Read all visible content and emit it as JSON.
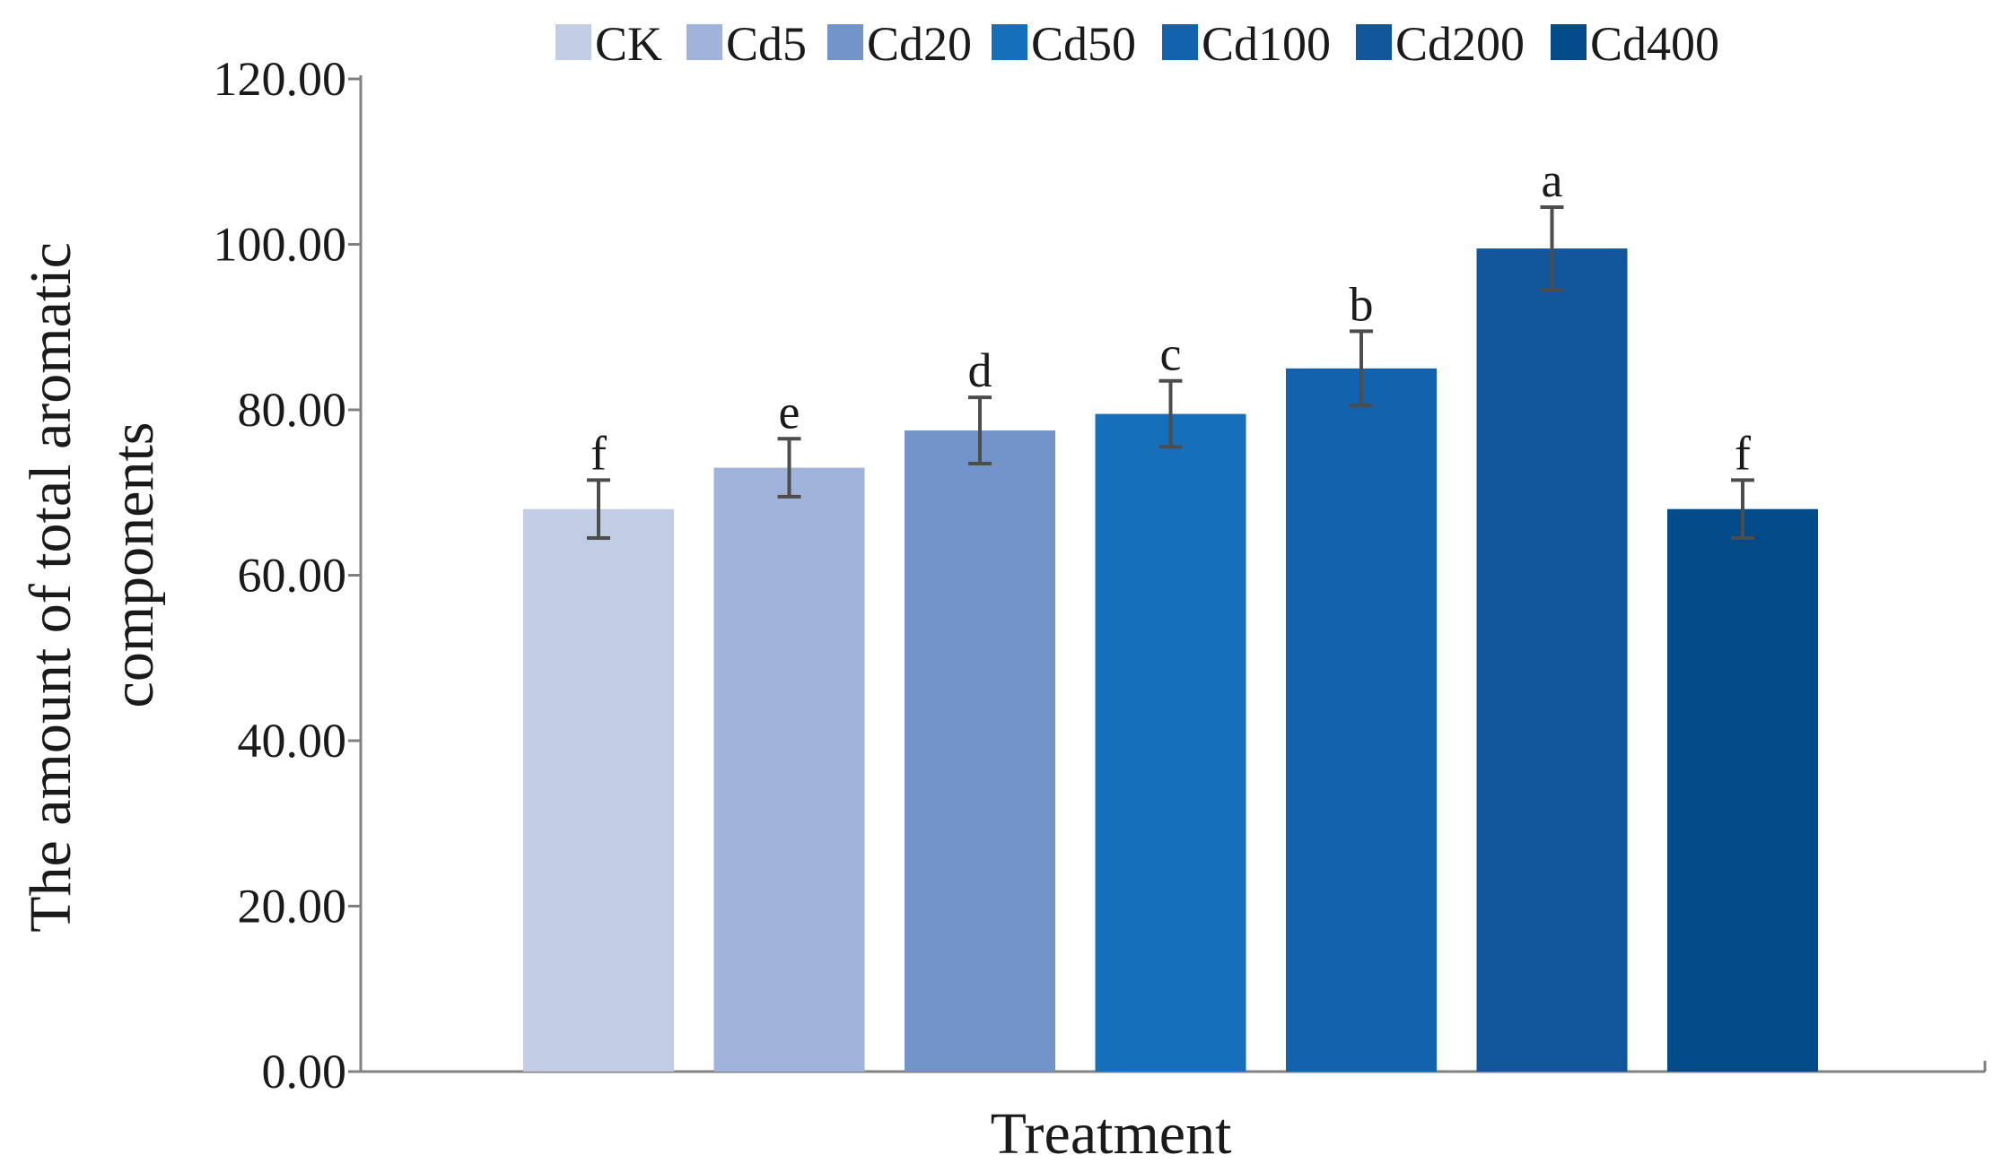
{
  "chart_data": {
    "type": "bar",
    "title": "",
    "xlabel": "Treatment",
    "ylabel_line1": "The amount of total aromatic",
    "ylabel_line2": "components",
    "ylim": [
      0,
      120
    ],
    "yticks": [
      "0.00",
      "20.00",
      "40.00",
      "60.00",
      "80.00",
      "100.00",
      "120.00"
    ],
    "grid": false,
    "legend_position": "top",
    "series": [
      {
        "name": "CK",
        "value": 68.0,
        "error": 3.5,
        "significance": "f",
        "color": "#c1cce5"
      },
      {
        "name": "Cd5",
        "value": 73.0,
        "error": 3.5,
        "significance": "e",
        "color": "#a0b3da"
      },
      {
        "name": "Cd20",
        "value": 77.5,
        "error": 4.0,
        "significance": "d",
        "color": "#7394c9"
      },
      {
        "name": "Cd50",
        "value": 79.5,
        "error": 4.0,
        "significance": "c",
        "color": "#156fbb"
      },
      {
        "name": "Cd100",
        "value": 85.0,
        "error": 4.5,
        "significance": "b",
        "color": "#1262ad"
      },
      {
        "name": "Cd200",
        "value": 99.5,
        "error": 5.0,
        "significance": "a",
        "color": "#12569c"
      },
      {
        "name": "Cd400",
        "value": 68.0,
        "error": 3.5,
        "significance": "f",
        "color": "#034a89"
      }
    ]
  }
}
